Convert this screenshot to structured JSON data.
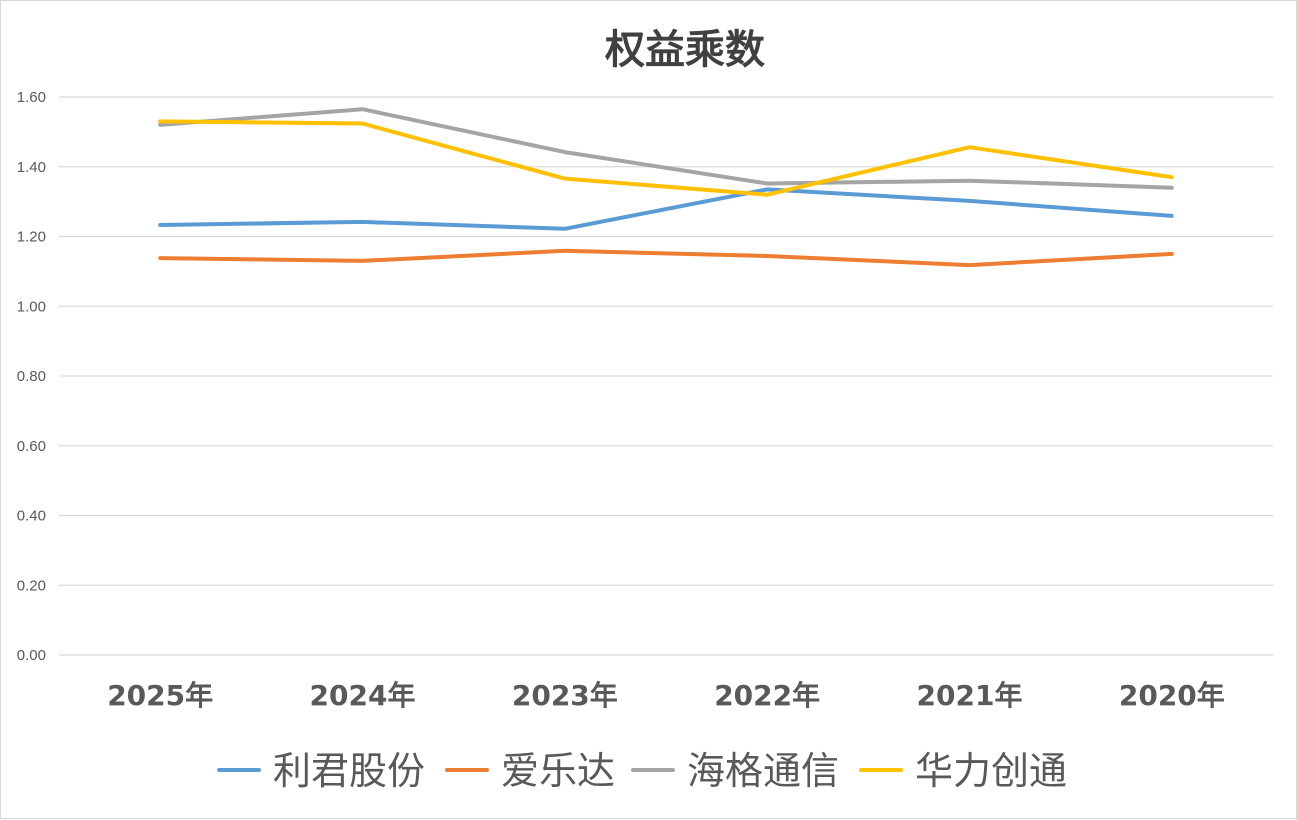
{
  "chart_data": {
    "type": "line",
    "title": "权益乘数",
    "xlabel": "",
    "ylabel": "",
    "categories": [
      "2025年",
      "2024年",
      "2023年",
      "2022年",
      "2021年",
      "2020年"
    ],
    "ylim": [
      0,
      1.6
    ],
    "yticks": [
      "0.00",
      "0.20",
      "0.40",
      "0.60",
      "0.80",
      "1.00",
      "1.20",
      "1.40",
      "1.60"
    ],
    "grid": true,
    "legend_position": "bottom",
    "series": [
      {
        "name": "利君股份",
        "color": "#5b9bd5",
        "values": [
          1.233,
          1.242,
          1.222,
          1.335,
          1.302,
          1.259
        ]
      },
      {
        "name": "爱乐达",
        "color": "#ed7d31",
        "values": [
          1.138,
          1.13,
          1.159,
          1.144,
          1.118,
          1.15
        ]
      },
      {
        "name": "海格通信",
        "color": "#a5a5a5",
        "values": [
          1.52,
          1.565,
          1.442,
          1.352,
          1.36,
          1.34
        ]
      },
      {
        "name": "华力创通",
        "color": "#ffc000",
        "values": [
          1.53,
          1.524,
          1.366,
          1.32,
          1.456,
          1.37
        ]
      }
    ]
  }
}
